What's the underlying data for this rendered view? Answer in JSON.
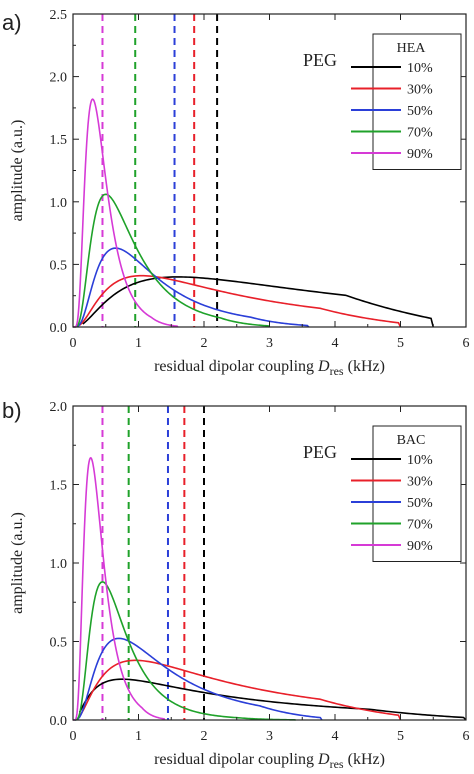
{
  "chart_data": [
    {
      "type": "line",
      "panel_label": "a)",
      "annotation": "PEG",
      "legend_title": "HEA",
      "xlabel_prefix": "residual dipolar coupling ",
      "xlabel_symbol": "D",
      "xlabel_sub": "res",
      "xlabel_unit": " (kHz)",
      "ylabel": "amplitude (a.u.)",
      "xlim": [
        0,
        6
      ],
      "ylim": [
        0,
        2.5
      ],
      "xticks": [
        "0",
        "1",
        "2",
        "3",
        "4",
        "5",
        "6"
      ],
      "yticks": [
        "0.0",
        "0.5",
        "1.0",
        "1.5",
        "2.0",
        "2.5"
      ],
      "legend_position": "top-right",
      "series": [
        {
          "name": "10%",
          "color": "#000000",
          "mu": 2.25,
          "sigma": 1.0,
          "peak_x": 1.6,
          "peak_y": 0.4,
          "dashed_x": 2.2,
          "x": [
            0.15,
            0.5,
            1.0,
            1.6,
            2.2,
            3.0,
            4.0,
            5.0,
            5.5
          ],
          "y": [
            0.0,
            0.12,
            0.28,
            0.4,
            0.37,
            0.22,
            0.08,
            0.02,
            0.0
          ]
        },
        {
          "name": "30%",
          "color": "#e8202a",
          "mu": 1.9,
          "sigma": 0.9,
          "peak_x": 1.05,
          "peak_y": 0.41,
          "dashed_x": 1.85,
          "x": [
            0.1,
            0.5,
            1.05,
            1.6,
            2.2,
            3.0,
            4.0,
            5.0
          ],
          "y": [
            0.0,
            0.22,
            0.41,
            0.33,
            0.27,
            0.15,
            0.04,
            0.0
          ]
        },
        {
          "name": "50%",
          "color": "#2b3fd8",
          "mu": 1.6,
          "sigma": 0.7,
          "peak_x": 0.65,
          "peak_y": 0.63,
          "dashed_x": 1.55,
          "x": [
            0.05,
            0.3,
            0.65,
            1.2,
            2.0,
            3.0,
            3.6
          ],
          "y": [
            0.0,
            0.3,
            0.63,
            0.42,
            0.3,
            0.12,
            0.0
          ]
        },
        {
          "name": "70%",
          "color": "#1fa22a",
          "mu": 1.1,
          "sigma": 0.65,
          "peak_x": 0.5,
          "peak_y": 1.06,
          "dashed_x": 0.95,
          "x": [
            0.0,
            0.25,
            0.5,
            0.9,
            1.5,
            2.2,
            3.0
          ],
          "y": [
            0.0,
            0.7,
            1.06,
            0.6,
            0.27,
            0.1,
            0.0
          ]
        },
        {
          "name": "90%",
          "color": "#d63ad6",
          "mu": 0.45,
          "sigma": 0.55,
          "peak_x": 0.3,
          "peak_y": 1.82,
          "dashed_x": 0.45,
          "x": [
            0.0,
            0.15,
            0.3,
            0.5,
            0.8,
            1.2,
            1.6
          ],
          "y": [
            0.0,
            1.2,
            1.82,
            1.0,
            0.3,
            0.05,
            0.0
          ]
        }
      ]
    },
    {
      "type": "line",
      "panel_label": "b)",
      "annotation": "PEG",
      "legend_title": "BAC",
      "xlabel_prefix": "residual dipolar coupling ",
      "xlabel_symbol": "D",
      "xlabel_sub": "res",
      "xlabel_unit": " (kHz)",
      "ylabel": "amplitude (a.u.)",
      "xlim": [
        0,
        6
      ],
      "ylim": [
        0,
        2.0
      ],
      "xticks": [
        "0",
        "1",
        "2",
        "3",
        "4",
        "5",
        "6"
      ],
      "yticks": [
        "0.0",
        "0.5",
        "1.0",
        "1.5",
        "2.0"
      ],
      "legend_position": "top-right",
      "series": [
        {
          "name": "10%",
          "color": "#000000",
          "mu": 2.0,
          "sigma": 1.1,
          "peak_x": 0.75,
          "peak_y": 0.26,
          "dashed_x": 2.0,
          "x": [
            0.1,
            0.4,
            0.75,
            1.5,
            2.2,
            3.0,
            4.0,
            5.0,
            6.0
          ],
          "y": [
            0.0,
            0.18,
            0.26,
            0.26,
            0.23,
            0.17,
            0.1,
            0.06,
            0.04
          ]
        },
        {
          "name": "30%",
          "color": "#e8202a",
          "mu": 1.7,
          "sigma": 0.95,
          "peak_x": 0.95,
          "peak_y": 0.38,
          "dashed_x": 1.7,
          "x": [
            0.08,
            0.5,
            0.95,
            1.6,
            2.4,
            3.2,
            4.0,
            5.0
          ],
          "y": [
            0.0,
            0.25,
            0.38,
            0.3,
            0.2,
            0.1,
            0.04,
            0.0
          ]
        },
        {
          "name": "50%",
          "color": "#2b3fd8",
          "mu": 1.45,
          "sigma": 0.75,
          "peak_x": 0.7,
          "peak_y": 0.52,
          "dashed_x": 1.45,
          "x": [
            0.03,
            0.35,
            0.7,
            1.3,
            2.0,
            2.8,
            3.8
          ],
          "y": [
            0.0,
            0.32,
            0.52,
            0.38,
            0.3,
            0.15,
            0.0
          ]
        },
        {
          "name": "70%",
          "color": "#1fa22a",
          "mu": 0.85,
          "sigma": 0.6,
          "peak_x": 0.45,
          "peak_y": 0.88,
          "dashed_x": 0.85,
          "x": [
            0.0,
            0.2,
            0.45,
            0.9,
            1.5,
            2.2,
            3.4
          ],
          "y": [
            0.0,
            0.55,
            0.88,
            0.45,
            0.25,
            0.15,
            0.0
          ]
        },
        {
          "name": "90%",
          "color": "#d63ad6",
          "mu": 0.45,
          "sigma": 0.55,
          "peak_x": 0.27,
          "peak_y": 1.67,
          "dashed_x": 0.45,
          "x": [
            0.0,
            0.12,
            0.27,
            0.45,
            0.75,
            1.0,
            1.4
          ],
          "y": [
            0.0,
            1.0,
            1.67,
            1.0,
            0.3,
            0.05,
            0.0
          ]
        }
      ]
    }
  ]
}
